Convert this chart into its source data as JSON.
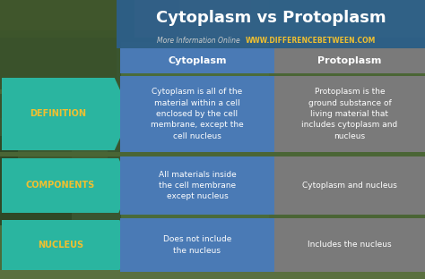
{
  "title": "Cytoplasm vs Protoplasm",
  "subtitle_gray": "More Information Online",
  "subtitle_url": "WWW.DIFFERENCEBETWEEN.COM",
  "col1_header": "Cytoplasm",
  "col2_header": "Protoplasm",
  "rows": [
    {
      "label": "DEFINITION",
      "col1": "Cytoplasm is all of the\nmaterial within a cell\nenclosed by the cell\nmembrane, except the\ncell nucleus",
      "col2": "Protoplasm is the\nground substance of\nliving material that\nincludes cytoplasm and\nnucleus"
    },
    {
      "label": "COMPONENTS",
      "col1": "All materials inside\nthe cell membrane\nexcept nucleus",
      "col2": "Cytoplasm and nucleus"
    },
    {
      "label": "NUCLEUS",
      "col1": "Does not include\nthe nucleus",
      "col2": "Includes the nucleus"
    }
  ],
  "title_color": "#ffffff",
  "title_bg_color": "#2c5f8c",
  "header_bg_color": "#4a7ab5",
  "col1_cell_color": "#4a7ab5",
  "col2_cell_color": "#7a7a7a",
  "label_arrow_color": "#2ab5a0",
  "label_text_color": "#f0c030",
  "cell_text_color": "#ffffff",
  "header_text_color": "#ffffff",
  "subtitle_gray_color": "#cccccc",
  "subtitle_url_color": "#f0c030",
  "bg_colors": [
    "#5a7a3a",
    "#4a6a50",
    "#3a5a40",
    "#6a8a4a",
    "#5a7a3a",
    "#4a6030",
    "#7a9050",
    "#506040"
  ],
  "title_bar_nature_top": "#8a9060",
  "header_row_bg": "#3a5a7a"
}
